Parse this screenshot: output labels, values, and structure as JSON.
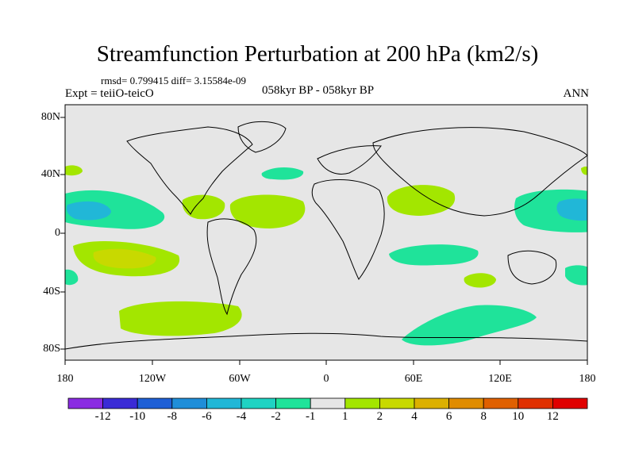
{
  "title": "Streamfunction Perturbation at 200 hPa (km2/s)",
  "stats": "rmsd= 0.799415 diff= 3.15584e-09",
  "experiment": "Expt = teiiO-teicO",
  "period": "058kyr BP - 058kyr BP",
  "season": "ANN",
  "lat_ticks": [
    "80N",
    "40N",
    "0",
    "40S",
    "80S"
  ],
  "lon_ticks": [
    "180",
    "120W",
    "60W",
    "0",
    "60E",
    "120E",
    "180"
  ],
  "colorbar": {
    "labels": [
      "-12",
      "-10",
      "-8",
      "-6",
      "-4",
      "-2",
      "-1",
      "1",
      "2",
      "4",
      "6",
      "8",
      "10",
      "12"
    ],
    "colors": [
      "#8a2be2",
      "#3a2bd6",
      "#1e5fd6",
      "#1f8ed9",
      "#21b7d7",
      "#1fd3c3",
      "#1fe39a",
      "#e6e6e6",
      "#a3e600",
      "#c8d900",
      "#dcb000",
      "#e08c00",
      "#e06000",
      "#e03000",
      "#e00000"
    ]
  },
  "background_color": "#e6e6e6"
}
